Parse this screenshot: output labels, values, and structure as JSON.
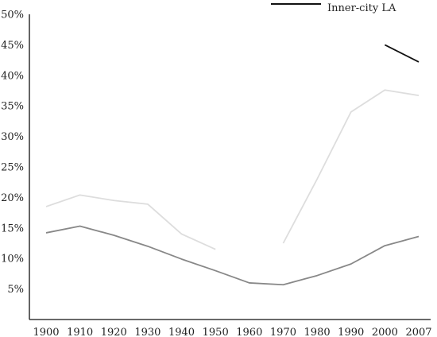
{
  "chart_data": {
    "type": "line",
    "title": "",
    "xlabel": "",
    "ylabel": "",
    "categories": [
      "1900",
      "1910",
      "1920",
      "1930",
      "1940",
      "1950",
      "1960",
      "1970",
      "1980",
      "1990",
      "2000",
      "2007"
    ],
    "ylim": [
      0,
      50
    ],
    "y_ticks": [
      "5%",
      "10%",
      "15%",
      "20%",
      "25%",
      "30%",
      "35%",
      "40%",
      "45%",
      "50%"
    ],
    "y_tick_values": [
      5,
      10,
      15,
      20,
      25,
      30,
      35,
      40,
      45,
      50
    ],
    "grid": false,
    "legend_position": "top-right",
    "legend": [
      "Inner-city LA"
    ],
    "series": [
      {
        "name": "Inner-city LA",
        "color": "#111111",
        "values": [
          null,
          null,
          null,
          null,
          null,
          null,
          null,
          null,
          null,
          null,
          45.0,
          42.2
        ]
      },
      {
        "color": "#dddddd",
        "values": [
          18.5,
          20.4,
          19.5,
          18.9,
          14.0,
          11.5,
          null,
          12.5,
          23.0,
          34.0,
          37.6,
          36.7
        ]
      },
      {
        "color": "#888888",
        "values": [
          14.2,
          15.3,
          13.8,
          12.0,
          9.9,
          8.0,
          6.0,
          5.7,
          7.2,
          9.1,
          12.1,
          13.6
        ]
      }
    ]
  }
}
